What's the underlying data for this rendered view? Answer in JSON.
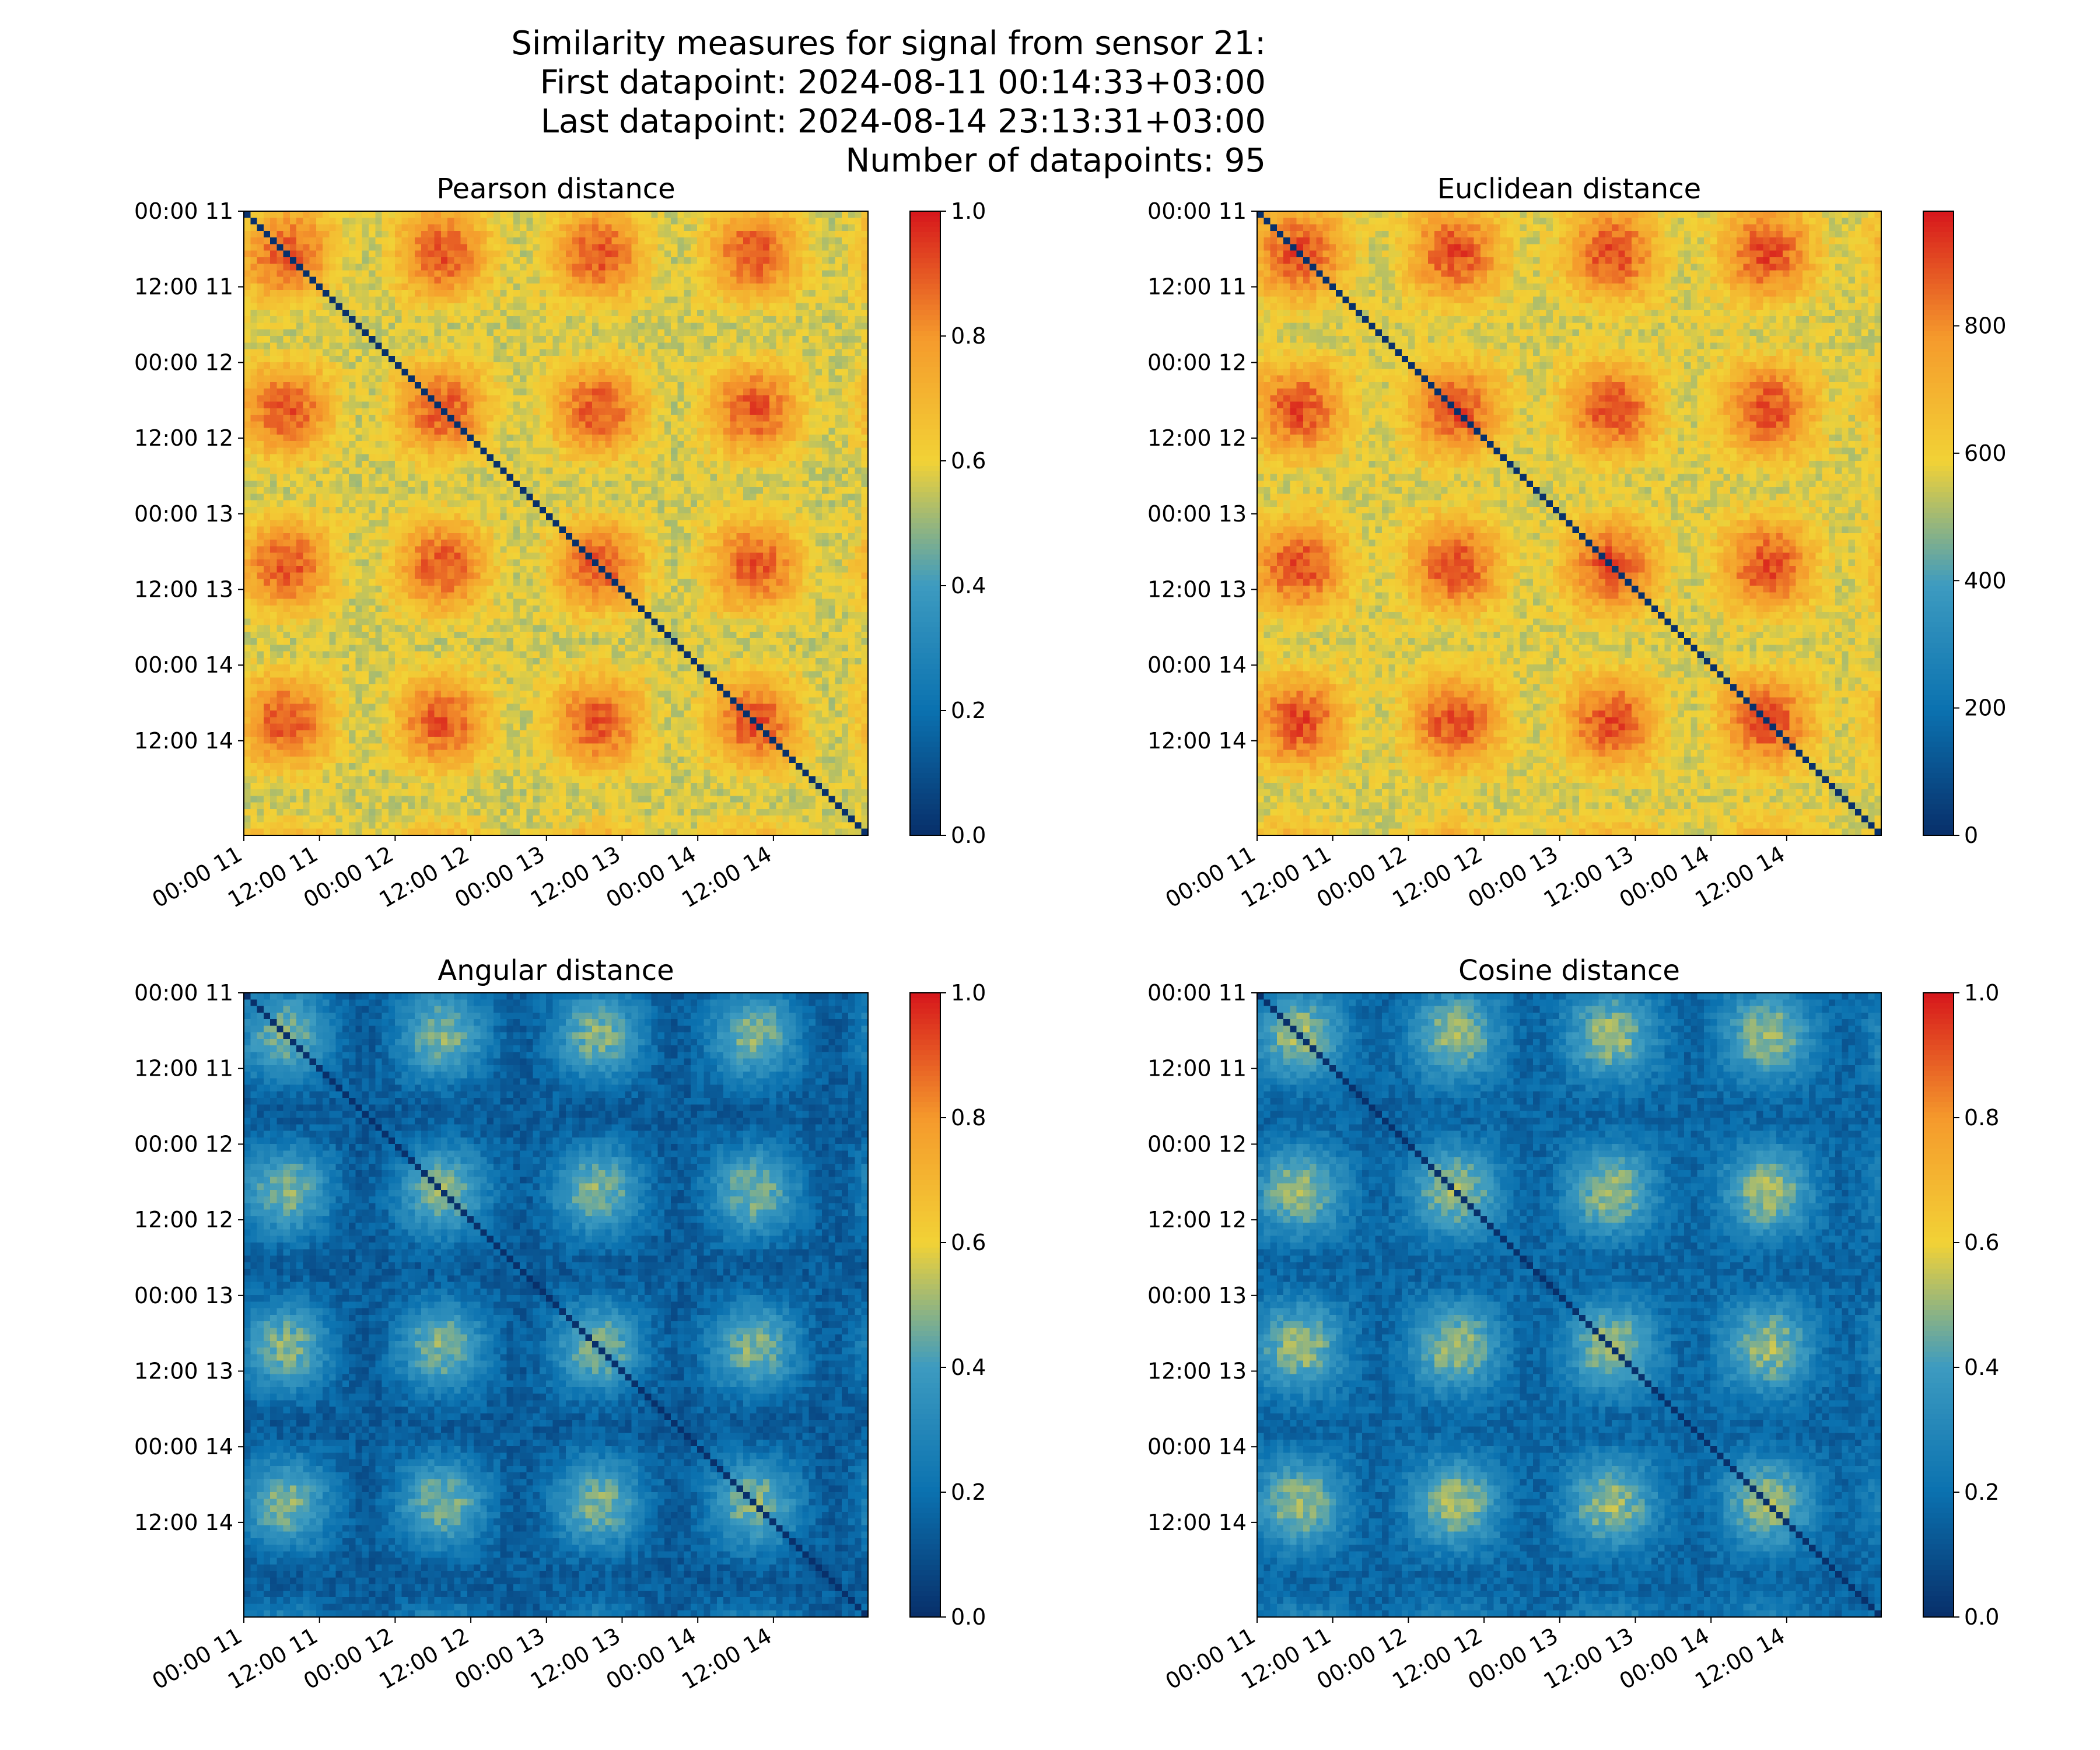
{
  "suptitle_lines": [
    "Similarity measures for signal from sensor 21:",
    "First datapoint: 2024-08-11 00:14:33+03:00",
    "Last datapoint: 2024-08-14 23:13:31+03:00",
    "Number of datapoints: 95"
  ],
  "chart_data": [
    {
      "type": "heatmap",
      "title": "Pearson distance",
      "n": 95,
      "x_tick_labels": [
        "00:00 11",
        "12:00 11",
        "00:00 12",
        "12:00 12",
        "00:00 13",
        "12:00 13",
        "00:00 14",
        "12:00 14"
      ],
      "y_tick_labels": [
        "00:00 11",
        "12:00 11",
        "00:00 12",
        "12:00 12",
        "00:00 13",
        "12:00 13",
        "00:00 14",
        "12:00 14"
      ],
      "vmin": 0,
      "vmax": 1.0,
      "background_value": 0.65,
      "colorbar_ticks": [
        0.0,
        0.2,
        0.4,
        0.6,
        0.8,
        1.0
      ],
      "colorbar_tick_labels": [
        "0.0",
        "0.2",
        "0.4",
        "0.6",
        "0.8",
        "1.0"
      ],
      "diagonal_value": 0,
      "colormap": [
        "#08306b",
        "#0b72b0",
        "#3d9bc0",
        "#f2d236",
        "#f59a2c",
        "#d7191c"
      ]
    },
    {
      "type": "heatmap",
      "title": "Euclidean distance",
      "n": 95,
      "x_tick_labels": [
        "00:00 11",
        "12:00 11",
        "00:00 12",
        "12:00 12",
        "00:00 13",
        "12:00 13",
        "00:00 14",
        "12:00 14"
      ],
      "y_tick_labels": [
        "00:00 11",
        "12:00 11",
        "00:00 12",
        "12:00 12",
        "00:00 13",
        "12:00 13",
        "00:00 14",
        "12:00 14"
      ],
      "vmin": 0,
      "vmax": 980,
      "background_value": 650,
      "colorbar_ticks": [
        0,
        200,
        400,
        600,
        800
      ],
      "colorbar_tick_labels": [
        "0",
        "200",
        "400",
        "600",
        "800"
      ],
      "diagonal_value": 0,
      "colormap": [
        "#08306b",
        "#0b72b0",
        "#3d9bc0",
        "#f2d236",
        "#f59a2c",
        "#d7191c"
      ]
    },
    {
      "type": "heatmap",
      "title": "Angular distance",
      "n": 95,
      "x_tick_labels": [
        "00:00 11",
        "12:00 11",
        "00:00 12",
        "12:00 12",
        "00:00 13",
        "12:00 13",
        "00:00 14",
        "12:00 14"
      ],
      "y_tick_labels": [
        "00:00 11",
        "12:00 11",
        "00:00 12",
        "12:00 12",
        "00:00 13",
        "12:00 13",
        "00:00 14",
        "12:00 14"
      ],
      "vmin": 0,
      "vmax": 1.0,
      "background_value": 0.22,
      "colorbar_ticks": [
        0.0,
        0.2,
        0.4,
        0.6,
        0.8,
        1.0
      ],
      "colorbar_tick_labels": [
        "0.0",
        "0.2",
        "0.4",
        "0.6",
        "0.8",
        "1.0"
      ],
      "diagonal_value": 0,
      "colormap": [
        "#08306b",
        "#0b72b0",
        "#3d9bc0",
        "#f2d236",
        "#f59a2c",
        "#d7191c"
      ]
    },
    {
      "type": "heatmap",
      "title": "Cosine distance",
      "n": 95,
      "x_tick_labels": [
        "00:00 11",
        "12:00 11",
        "00:00 12",
        "12:00 12",
        "00:00 13",
        "12:00 13",
        "00:00 14",
        "12:00 14"
      ],
      "y_tick_labels": [
        "00:00 11",
        "12:00 11",
        "00:00 12",
        "12:00 12",
        "00:00 13",
        "12:00 13",
        "00:00 14",
        "12:00 14"
      ],
      "vmin": 0,
      "vmax": 1.0,
      "background_value": 0.25,
      "colorbar_ticks": [
        0.0,
        0.2,
        0.4,
        0.6,
        0.8,
        1.0
      ],
      "colorbar_tick_labels": [
        "0.0",
        "0.2",
        "0.4",
        "0.6",
        "0.8",
        "1.0"
      ],
      "diagonal_value": 0,
      "colormap": [
        "#08306b",
        "#0b72b0",
        "#3d9bc0",
        "#f2d236",
        "#f59a2c",
        "#d7191c"
      ]
    }
  ]
}
